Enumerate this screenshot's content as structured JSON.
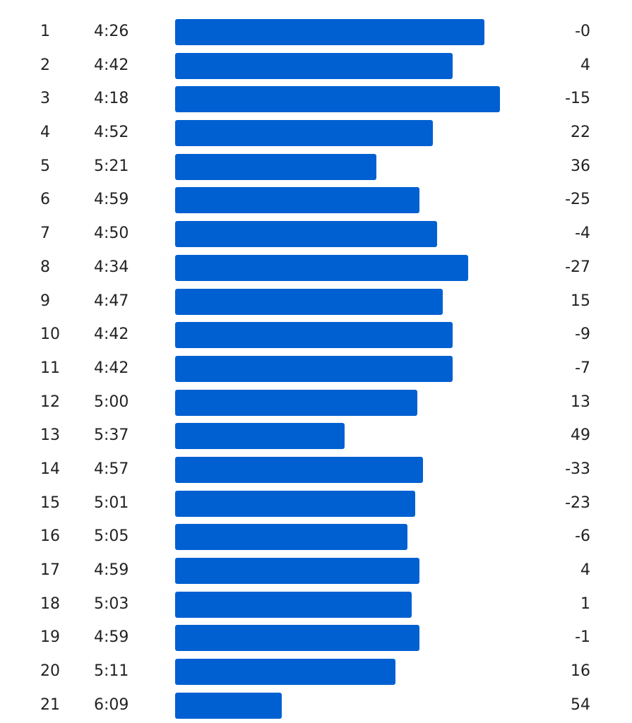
{
  "colors": {
    "bar": "#0060d1",
    "text": "#222222",
    "background": "#ffffff"
  },
  "chart_data": {
    "type": "bar",
    "orientation": "horizontal",
    "unit_note": "bar length grows as pace gets faster",
    "categories": [
      "1",
      "2",
      "3",
      "4",
      "5",
      "6",
      "7",
      "8",
      "9",
      "10",
      "11",
      "12",
      "13",
      "14",
      "15",
      "16",
      "17",
      "18",
      "19",
      "20",
      "21"
    ],
    "pace_labels": [
      "4:26",
      "4:42",
      "4:18",
      "4:52",
      "5:21",
      "4:59",
      "4:50",
      "4:34",
      "4:47",
      "4:42",
      "4:42",
      "5:00",
      "5:37",
      "4:57",
      "5:01",
      "5:05",
      "4:59",
      "5:03",
      "4:59",
      "5:11",
      "6:09"
    ],
    "pace_seconds": [
      266,
      282,
      258,
      292,
      321,
      299,
      290,
      274,
      287,
      282,
      282,
      300,
      337,
      297,
      301,
      305,
      299,
      303,
      299,
      311,
      369
    ],
    "elevation_labels": [
      "-0",
      "4",
      "-15",
      "22",
      "36",
      "-25",
      "-4",
      "-27",
      "15",
      "-9",
      "-7",
      "13",
      "49",
      "-33",
      "-23",
      "-6",
      "4",
      "1",
      "-1",
      "16",
      "54"
    ]
  }
}
